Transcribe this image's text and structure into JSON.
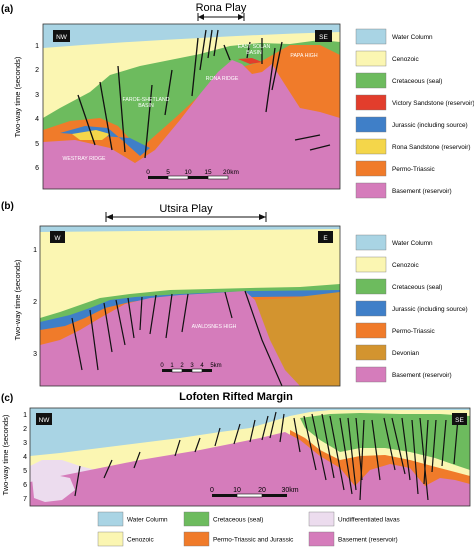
{
  "colors": {
    "water": "#a9d4e4",
    "cenozoic": "#fbf6b2",
    "cretaceous": "#6dbb5e",
    "victory": "#e23d2c",
    "jurassic": "#3f7fc8",
    "rona": "#f4d64a",
    "permo_triassic": "#f07b2a",
    "devonian": "#d3942f",
    "basement": "#d57cbb",
    "lavas": "#ecdcee",
    "fault": "#111111"
  },
  "panel_a": {
    "tag": "(a)",
    "title": "Rona Play",
    "axis_label": "Two-way time (seconds)",
    "ticks": [
      "1",
      "2",
      "3",
      "4",
      "5",
      "6"
    ],
    "nw": "NW",
    "se": "SE",
    "labels": {
      "east_solan": [
        "EAST SOLAN",
        "BASIN"
      ],
      "papa_high": "PAPA HIGH",
      "rona_ridge": "RONA RIDGE",
      "faroe_shetland": [
        "FAROE-SHETLAND",
        "BASIN"
      ],
      "westray_ridge": "WESTRAY RIDGE"
    },
    "scale": [
      "0",
      "5",
      "10",
      "15",
      "20km"
    ],
    "legend": [
      {
        "label": "Water Column",
        "color": "water"
      },
      {
        "label": "Cenozoic",
        "color": "cenozoic"
      },
      {
        "label": "Cretaceous (seal)",
        "color": "cretaceous"
      },
      {
        "label": "Victory Sandstone (reservoir)",
        "color": "victory"
      },
      {
        "label": "Jurassic (including source)",
        "color": "jurassic"
      },
      {
        "label": "Rona Sandstone (reservoir)",
        "color": "rona"
      },
      {
        "label": "Permo-Triassic",
        "color": "permo_triassic"
      },
      {
        "label": "Basement (reservoir)",
        "color": "basement"
      }
    ]
  },
  "panel_b": {
    "tag": "(b)",
    "title": "Utsira Play",
    "axis_label": "Two-way time (seconds)",
    "ticks": [
      "1",
      "2",
      "3"
    ],
    "w": "W",
    "e": "E",
    "labels": {
      "avaldsnes": "AVALDSNES HIGH"
    },
    "scale": [
      "0",
      "1",
      "2",
      "3",
      "4",
      "5km"
    ],
    "legend": [
      {
        "label": "Water Column",
        "color": "water"
      },
      {
        "label": "Cenozoic",
        "color": "cenozoic"
      },
      {
        "label": "Cretaceous (seal)",
        "color": "cretaceous"
      },
      {
        "label": "Jurassic (including source)",
        "color": "jurassic"
      },
      {
        "label": "Permo-Triassic",
        "color": "permo_triassic"
      },
      {
        "label": "Devonian",
        "color": "devonian"
      },
      {
        "label": "Basement (reservoir)",
        "color": "basement"
      }
    ]
  },
  "panel_c": {
    "tag": "(c)",
    "title": "Lofoten Rifted Margin",
    "axis_label": "Two-way time (seconds)",
    "ticks": [
      "1",
      "2",
      "3",
      "4",
      "5",
      "6",
      "7"
    ],
    "nw": "NW",
    "se": "SE",
    "scale": [
      "0",
      "10",
      "20",
      "30km"
    ],
    "legend": [
      {
        "label": "Water Column",
        "color": "water"
      },
      {
        "label": "Cretaceous (seal)",
        "color": "cretaceous"
      },
      {
        "label": "Undifferentiated lavas",
        "color": "lavas"
      },
      {
        "label": "Cenozoic",
        "color": "cenozoic"
      },
      {
        "label": "Permo-Triassic and Jurassic",
        "color": "permo_triassic"
      },
      {
        "label": "Basement (reservoir)",
        "color": "basement"
      }
    ]
  }
}
